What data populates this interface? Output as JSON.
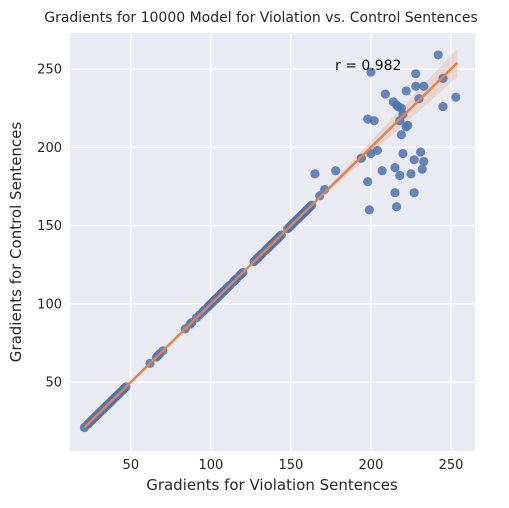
{
  "chart_data": {
    "type": "scatter",
    "title": "Gradients for 10000 Model for Violation vs. Control Sentences",
    "xlabel": "Gradients for Violation Sentences",
    "ylabel": "Gradients for Control Sentences",
    "annotation": "r = 0.982",
    "xlim": [
      12,
      265
    ],
    "ylim": [
      6,
      273
    ],
    "xticks": [
      50,
      100,
      150,
      200,
      250
    ],
    "yticks": [
      50,
      100,
      150,
      200,
      250
    ],
    "grid": true,
    "background": "#eaeaf2",
    "point_color": "#4c72b0",
    "line_color": "#dd8452",
    "regression": {
      "slope": 1.0,
      "intercept": 0.0,
      "x_range": [
        21,
        254
      ]
    },
    "points": [
      [
        21,
        21
      ],
      [
        23,
        23
      ],
      [
        24,
        24
      ],
      [
        25,
        25
      ],
      [
        26,
        26
      ],
      [
        27,
        27
      ],
      [
        28,
        28
      ],
      [
        29,
        29
      ],
      [
        30,
        30
      ],
      [
        31,
        31
      ],
      [
        32,
        32
      ],
      [
        33,
        33
      ],
      [
        34,
        34
      ],
      [
        35,
        35
      ],
      [
        36,
        36
      ],
      [
        37,
        37
      ],
      [
        38,
        38
      ],
      [
        39,
        39
      ],
      [
        40,
        40
      ],
      [
        41,
        41
      ],
      [
        42,
        42
      ],
      [
        43,
        43
      ],
      [
        44,
        44
      ],
      [
        45,
        45
      ],
      [
        46,
        46
      ],
      [
        47,
        47
      ],
      [
        62,
        62
      ],
      [
        66,
        66
      ],
      [
        67,
        67
      ],
      [
        68,
        68
      ],
      [
        70,
        70
      ],
      [
        84,
        84
      ],
      [
        87,
        87
      ],
      [
        88,
        88
      ],
      [
        91,
        91
      ],
      [
        93,
        93
      ],
      [
        95,
        95
      ],
      [
        96,
        96
      ],
      [
        98,
        98
      ],
      [
        99,
        99
      ],
      [
        100,
        100
      ],
      [
        101,
        101
      ],
      [
        102,
        102
      ],
      [
        103,
        103
      ],
      [
        104,
        104
      ],
      [
        105,
        105
      ],
      [
        106,
        106
      ],
      [
        107,
        107
      ],
      [
        108,
        108
      ],
      [
        109,
        109
      ],
      [
        110,
        110
      ],
      [
        111,
        111
      ],
      [
        112,
        112
      ],
      [
        114,
        114
      ],
      [
        115,
        115
      ],
      [
        116,
        116
      ],
      [
        118,
        118
      ],
      [
        119,
        119
      ],
      [
        120,
        120
      ],
      [
        127,
        127
      ],
      [
        128,
        128
      ],
      [
        129,
        129
      ],
      [
        130,
        130
      ],
      [
        131,
        131
      ],
      [
        132,
        132
      ],
      [
        134,
        134
      ],
      [
        135,
        135
      ],
      [
        136,
        136
      ],
      [
        137,
        137
      ],
      [
        138,
        138
      ],
      [
        139,
        139
      ],
      [
        140,
        140
      ],
      [
        141,
        141
      ],
      [
        142,
        142
      ],
      [
        143,
        143
      ],
      [
        144,
        144
      ],
      [
        148,
        148
      ],
      [
        149,
        149
      ],
      [
        150,
        150
      ],
      [
        151,
        151
      ],
      [
        152,
        152
      ],
      [
        153,
        153
      ],
      [
        154,
        154
      ],
      [
        155,
        155
      ],
      [
        156,
        156
      ],
      [
        157,
        157
      ],
      [
        158,
        158
      ],
      [
        159,
        159
      ],
      [
        160,
        160
      ],
      [
        161,
        161
      ],
      [
        162,
        162
      ],
      [
        163,
        163
      ],
      [
        165,
        183
      ],
      [
        168,
        169
      ],
      [
        171,
        173
      ],
      [
        178,
        185
      ],
      [
        194,
        193
      ],
      [
        198,
        218
      ],
      [
        198,
        178
      ],
      [
        199,
        160
      ],
      [
        200,
        196
      ],
      [
        200,
        248
      ],
      [
        202,
        217
      ],
      [
        204,
        198
      ],
      [
        207,
        185
      ],
      [
        209,
        234
      ],
      [
        214,
        229
      ],
      [
        215,
        187
      ],
      [
        215,
        171
      ],
      [
        216,
        162
      ],
      [
        216,
        227
      ],
      [
        217,
        226
      ],
      [
        218,
        217
      ],
      [
        218,
        182
      ],
      [
        219,
        225
      ],
      [
        219,
        208
      ],
      [
        220,
        196
      ],
      [
        220,
        221
      ],
      [
        222,
        213
      ],
      [
        222,
        236
      ],
      [
        223,
        214
      ],
      [
        225,
        183
      ],
      [
        227,
        171
      ],
      [
        227,
        192
      ],
      [
        228,
        239
      ],
      [
        228,
        247
      ],
      [
        230,
        231
      ],
      [
        231,
        197
      ],
      [
        232,
        186
      ],
      [
        233,
        191
      ],
      [
        233,
        239
      ],
      [
        242,
        259
      ],
      [
        245,
        244
      ],
      [
        245,
        226
      ],
      [
        253,
        232
      ]
    ]
  }
}
